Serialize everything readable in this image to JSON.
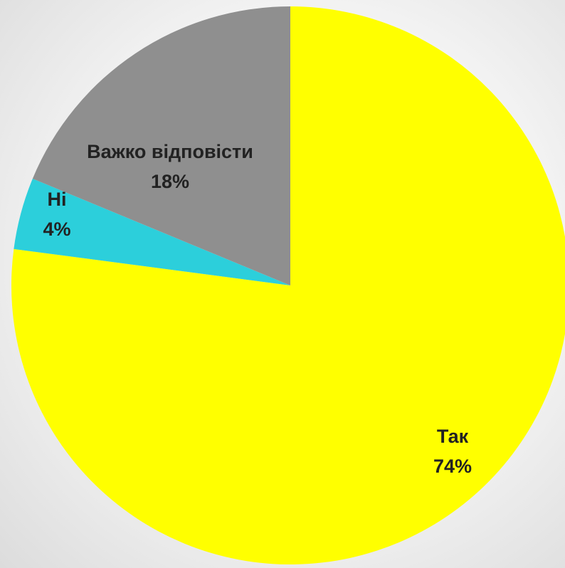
{
  "chart_data": {
    "type": "pie",
    "title": "",
    "colors": {
      "yes": "#ffff00",
      "no": "#2ccfdb",
      "hard_to_say": "#8f8f8f"
    },
    "slices": [
      {
        "name": "Так",
        "value": 74,
        "value_label": "74%",
        "color": "#ffff00"
      },
      {
        "name": "Ні",
        "value": 4,
        "value_label": "4%",
        "color": "#2ccfdb"
      },
      {
        "name": "Важко відповісти",
        "value": 18,
        "value_label": "18%",
        "color": "#8f8f8f"
      }
    ],
    "start_angle_deg": 0,
    "direction": "clockwise",
    "legend": "none"
  }
}
